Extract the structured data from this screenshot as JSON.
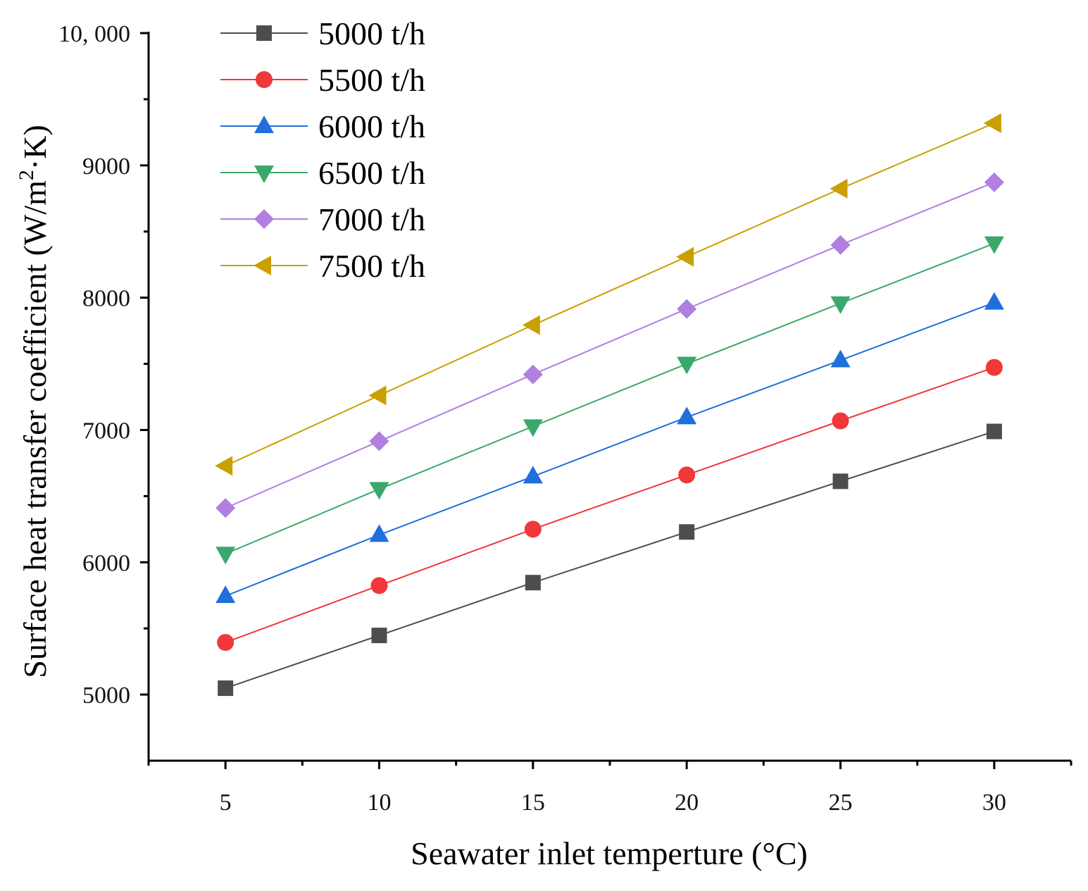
{
  "chart_data": {
    "type": "line",
    "title": "",
    "xlabel": "Seawater inlet temperture (°C)",
    "ylabel": "Surface heat transfer coefficient (W/m²·K)",
    "ylabel_parts": {
      "main": "Surface heat transfer coefficient (W/m",
      "sup": "2",
      "end": "·K)"
    },
    "xlim": [
      2.5,
      32.5
    ],
    "ylim": [
      4500,
      10000
    ],
    "x_ticks": [
      5,
      10,
      15,
      20,
      25,
      30
    ],
    "x_tick_labels": [
      "5",
      "10",
      "15",
      "20",
      "25",
      "30"
    ],
    "y_ticks": [
      5000,
      6000,
      7000,
      8000,
      9000,
      10000
    ],
    "y_tick_labels": [
      "5000",
      "6000",
      "7000",
      "8000",
      "9000",
      "10, 000"
    ],
    "grid": false,
    "legend_position": "top-left",
    "x": [
      5,
      10,
      15,
      20,
      25,
      30
    ],
    "series": [
      {
        "name": "5000 t/h",
        "color": "#4d4d4d",
        "marker": "square",
        "values": [
          5048,
          5447,
          5846,
          6229,
          6612,
          6989
        ]
      },
      {
        "name": "5500 t/h",
        "color": "#f0373a",
        "marker": "circle",
        "values": [
          5394,
          5824,
          6250,
          6660,
          7069,
          7473
        ]
      },
      {
        "name": "6000 t/h",
        "color": "#1f6fdc",
        "marker": "triangle-up",
        "values": [
          5745,
          6207,
          6649,
          7096,
          7527,
          7963
        ]
      },
      {
        "name": "6500 t/h",
        "color": "#3aa86a",
        "marker": "triangle-down",
        "values": [
          6064,
          6553,
          7027,
          7500,
          7957,
          8410
        ]
      },
      {
        "name": "7000 t/h",
        "color": "#b07fe0",
        "marker": "diamond",
        "values": [
          6410,
          6915,
          7420,
          7915,
          8399,
          8872
        ]
      },
      {
        "name": "7500 t/h",
        "color": "#c9a000",
        "marker": "triangle-left",
        "values": [
          6729,
          7261,
          7793,
          8309,
          8824,
          9319
        ]
      }
    ]
  }
}
